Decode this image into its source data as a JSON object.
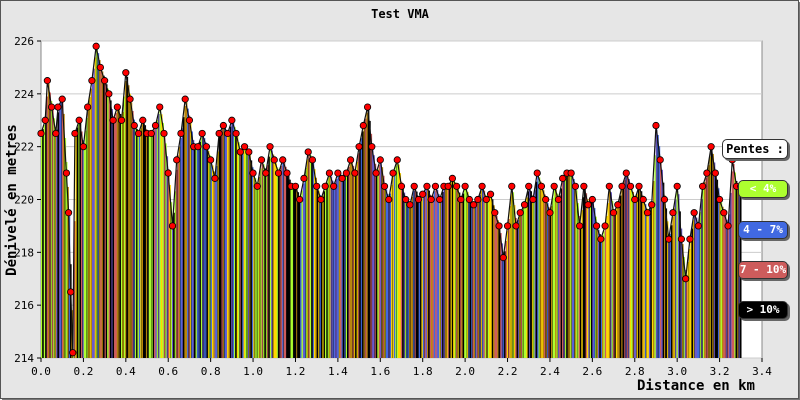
{
  "chart_data": {
    "type": "area",
    "title": "Test VMA",
    "xlabel": "Distance en km",
    "ylabel": "Dénivelé en metres",
    "xlim": [
      0,
      3.4
    ],
    "ylim": [
      214,
      226
    ],
    "xticks": [
      "0.0",
      "0.2",
      "0.4",
      "0.6",
      "0.8",
      "1.0",
      "1.2",
      "1.4",
      "1.6",
      "1.8",
      "2.0",
      "2.2",
      "2.4",
      "2.6",
      "2.8",
      "3.0",
      "3.2",
      "3.4"
    ],
    "yticks": [
      "214",
      "216",
      "218",
      "220",
      "222",
      "224",
      "226"
    ],
    "grid": true,
    "legend_position": "right",
    "legend": {
      "title": "Pentes :",
      "items": [
        {
          "label": "< 4%",
          "color": "#adff2f",
          "text_color": "#ffffff"
        },
        {
          "label": "4 - 7%",
          "color": "#4169e1",
          "text_color": "#ffffff"
        },
        {
          "label": "7 - 10%",
          "color": "#cd5c5c",
          "text_color": "#ffffff"
        },
        {
          "label": "> 10%",
          "color": "#000000",
          "text_color": "#ffffff"
        }
      ]
    },
    "colors": {
      "bar_palette": [
        "#000000",
        "#b8860b",
        "#4169e1",
        "#adff2f",
        "#cd5c5c",
        "#ffd700",
        "#6a5acd"
      ],
      "point_fill": "#ff0000",
      "point_stroke": "#000000",
      "outline": "#111111"
    },
    "profile": [
      [
        0.0,
        222.5
      ],
      [
        0.02,
        223.0
      ],
      [
        0.03,
        224.5
      ],
      [
        0.05,
        223.5
      ],
      [
        0.07,
        222.5
      ],
      [
        0.08,
        223.5
      ],
      [
        0.1,
        223.8
      ],
      [
        0.12,
        221.0
      ],
      [
        0.13,
        219.5
      ],
      [
        0.14,
        216.5
      ],
      [
        0.15,
        214.2
      ],
      [
        0.16,
        222.5
      ],
      [
        0.18,
        223.0
      ],
      [
        0.2,
        222.0
      ],
      [
        0.22,
        223.5
      ],
      [
        0.24,
        224.5
      ],
      [
        0.26,
        225.8
      ],
      [
        0.28,
        225.0
      ],
      [
        0.3,
        224.5
      ],
      [
        0.32,
        224.0
      ],
      [
        0.34,
        223.0
      ],
      [
        0.36,
        223.5
      ],
      [
        0.38,
        223.0
      ],
      [
        0.4,
        224.8
      ],
      [
        0.42,
        223.8
      ],
      [
        0.44,
        222.8
      ],
      [
        0.46,
        222.5
      ],
      [
        0.48,
        223.0
      ],
      [
        0.5,
        222.5
      ],
      [
        0.52,
        222.5
      ],
      [
        0.54,
        222.8
      ],
      [
        0.56,
        223.5
      ],
      [
        0.58,
        222.5
      ],
      [
        0.6,
        221.0
      ],
      [
        0.62,
        219.0
      ],
      [
        0.64,
        221.5
      ],
      [
        0.66,
        222.5
      ],
      [
        0.68,
        223.8
      ],
      [
        0.7,
        223.0
      ],
      [
        0.72,
        222.0
      ],
      [
        0.74,
        222.0
      ],
      [
        0.76,
        222.5
      ],
      [
        0.78,
        222.0
      ],
      [
        0.8,
        221.5
      ],
      [
        0.82,
        220.8
      ],
      [
        0.84,
        222.5
      ],
      [
        0.86,
        222.8
      ],
      [
        0.88,
        222.5
      ],
      [
        0.9,
        223.0
      ],
      [
        0.92,
        222.5
      ],
      [
        0.94,
        221.8
      ],
      [
        0.96,
        222.0
      ],
      [
        0.98,
        221.8
      ],
      [
        1.0,
        221.0
      ],
      [
        1.02,
        220.5
      ],
      [
        1.04,
        221.5
      ],
      [
        1.06,
        221.0
      ],
      [
        1.08,
        222.0
      ],
      [
        1.1,
        221.5
      ],
      [
        1.12,
        221.0
      ],
      [
        1.14,
        221.5
      ],
      [
        1.16,
        221.0
      ],
      [
        1.18,
        220.5
      ],
      [
        1.2,
        220.5
      ],
      [
        1.22,
        220.0
      ],
      [
        1.24,
        220.8
      ],
      [
        1.26,
        221.8
      ],
      [
        1.28,
        221.5
      ],
      [
        1.3,
        220.5
      ],
      [
        1.32,
        220.0
      ],
      [
        1.34,
        220.5
      ],
      [
        1.36,
        221.0
      ],
      [
        1.38,
        220.5
      ],
      [
        1.4,
        221.0
      ],
      [
        1.42,
        220.8
      ],
      [
        1.44,
        221.0
      ],
      [
        1.46,
        221.5
      ],
      [
        1.48,
        221.0
      ],
      [
        1.5,
        222.0
      ],
      [
        1.52,
        222.8
      ],
      [
        1.54,
        223.5
      ],
      [
        1.56,
        222.0
      ],
      [
        1.58,
        221.0
      ],
      [
        1.6,
        221.5
      ],
      [
        1.62,
        220.5
      ],
      [
        1.64,
        220.0
      ],
      [
        1.66,
        221.0
      ],
      [
        1.68,
        221.5
      ],
      [
        1.7,
        220.5
      ],
      [
        1.72,
        220.0
      ],
      [
        1.74,
        219.8
      ],
      [
        1.76,
        220.5
      ],
      [
        1.78,
        220.0
      ],
      [
        1.8,
        220.2
      ],
      [
        1.82,
        220.5
      ],
      [
        1.84,
        220.0
      ],
      [
        1.86,
        220.5
      ],
      [
        1.88,
        220.0
      ],
      [
        1.9,
        220.5
      ],
      [
        1.92,
        220.5
      ],
      [
        1.94,
        220.8
      ],
      [
        1.96,
        220.5
      ],
      [
        1.98,
        220.0
      ],
      [
        2.0,
        220.5
      ],
      [
        2.02,
        220.0
      ],
      [
        2.04,
        219.8
      ],
      [
        2.06,
        220.0
      ],
      [
        2.08,
        220.5
      ],
      [
        2.1,
        220.0
      ],
      [
        2.12,
        220.2
      ],
      [
        2.14,
        219.5
      ],
      [
        2.16,
        219.0
      ],
      [
        2.18,
        217.8
      ],
      [
        2.2,
        219.0
      ],
      [
        2.22,
        220.5
      ],
      [
        2.24,
        219.0
      ],
      [
        2.26,
        219.5
      ],
      [
        2.28,
        219.8
      ],
      [
        2.3,
        220.5
      ],
      [
        2.32,
        220.0
      ],
      [
        2.34,
        221.0
      ],
      [
        2.36,
        220.5
      ],
      [
        2.38,
        220.0
      ],
      [
        2.4,
        219.5
      ],
      [
        2.42,
        220.5
      ],
      [
        2.44,
        220.0
      ],
      [
        2.46,
        220.8
      ],
      [
        2.48,
        221.0
      ],
      [
        2.5,
        221.0
      ],
      [
        2.52,
        220.5
      ],
      [
        2.54,
        219.0
      ],
      [
        2.56,
        220.5
      ],
      [
        2.58,
        219.8
      ],
      [
        2.6,
        220.0
      ],
      [
        2.62,
        219.0
      ],
      [
        2.64,
        218.5
      ],
      [
        2.66,
        219.0
      ],
      [
        2.68,
        220.5
      ],
      [
        2.7,
        219.5
      ],
      [
        2.72,
        219.8
      ],
      [
        2.74,
        220.5
      ],
      [
        2.76,
        221.0
      ],
      [
        2.78,
        220.5
      ],
      [
        2.8,
        220.0
      ],
      [
        2.82,
        220.5
      ],
      [
        2.84,
        220.0
      ],
      [
        2.86,
        219.5
      ],
      [
        2.88,
        219.8
      ],
      [
        2.9,
        222.8
      ],
      [
        2.92,
        221.5
      ],
      [
        2.94,
        220.0
      ],
      [
        2.96,
        218.5
      ],
      [
        2.98,
        219.5
      ],
      [
        3.0,
        220.5
      ],
      [
        3.02,
        218.5
      ],
      [
        3.04,
        217.0
      ],
      [
        3.06,
        218.5
      ],
      [
        3.08,
        219.5
      ],
      [
        3.1,
        219.0
      ],
      [
        3.12,
        220.5
      ],
      [
        3.14,
        221.0
      ],
      [
        3.16,
        222.0
      ],
      [
        3.18,
        221.0
      ],
      [
        3.2,
        220.0
      ],
      [
        3.22,
        219.5
      ],
      [
        3.24,
        219.0
      ],
      [
        3.26,
        221.5
      ],
      [
        3.28,
        220.5
      ],
      [
        3.3,
        220.5
      ]
    ]
  }
}
